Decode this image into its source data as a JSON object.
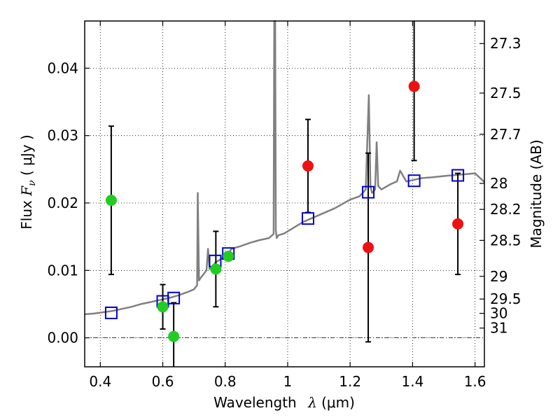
{
  "chart_data": {
    "type": "scatter",
    "xlabel_prefix": "Wavelength",
    "xlabel_symbol": "λ",
    "xlabel_unit": "(μm)",
    "ylabel_prefix": "Flux",
    "ylabel_symbol": "F",
    "ylabel_subscript": "ν",
    "ylabel_unit": "( μJy )",
    "y2label": "Magnitude (AB)",
    "xlim": [
      0.35,
      1.63
    ],
    "ylim": [
      -0.0043,
      0.047
    ],
    "grid": true,
    "x_ticks": [
      0.4,
      0.6,
      0.8,
      1.0,
      1.2,
      1.4,
      1.6
    ],
    "x_tick_labels": [
      "0.4",
      "0.6",
      "0.8",
      "1",
      "1.2",
      "1.4",
      "1.6"
    ],
    "y_ticks": [
      0.0,
      0.01,
      0.02,
      0.03,
      0.04
    ],
    "y_tick_labels": [
      "0.00",
      "0.01",
      "0.02",
      "0.03",
      "0.04"
    ],
    "y2_ticks": [
      27.3,
      27.5,
      27.7,
      28,
      28.2,
      28.5,
      29,
      29.5,
      30,
      31
    ],
    "y2_tick_labels": [
      "27.3",
      "27.5",
      "27.7",
      "28",
      "28.2",
      "28.5",
      "29",
      "29.5",
      "30",
      "31"
    ],
    "colors": {
      "spectrum": "#808080",
      "model_box": "#0000cc",
      "detection": "#22cc22",
      "nondetection": "#ee1111",
      "errorbar": "#000000"
    },
    "spectrum": {
      "name": "",
      "x": [
        0.35,
        0.38,
        0.41,
        0.44,
        0.47,
        0.5,
        0.53,
        0.56,
        0.59,
        0.62,
        0.65,
        0.68,
        0.7,
        0.71,
        0.712,
        0.716,
        0.72,
        0.74,
        0.745,
        0.75,
        0.77,
        0.79,
        0.8,
        0.81,
        0.82,
        0.85,
        0.88,
        0.91,
        0.94,
        0.955,
        0.957,
        0.96,
        0.962,
        0.965,
        0.97,
        0.99,
        1.0,
        1.05,
        1.1,
        1.15,
        1.2,
        1.23,
        1.25,
        1.26,
        1.265,
        1.27,
        1.28,
        1.285,
        1.29,
        1.3,
        1.33,
        1.35,
        1.36,
        1.38,
        1.4,
        1.43,
        1.46,
        1.5,
        1.55,
        1.6,
        1.63
      ],
      "y": [
        0.0035,
        0.0036,
        0.0038,
        0.004,
        0.0043,
        0.0046,
        0.005,
        0.0053,
        0.0056,
        0.0059,
        0.0063,
        0.0068,
        0.0072,
        0.0078,
        0.0215,
        0.0085,
        0.0088,
        0.01,
        0.0132,
        0.0102,
        0.0112,
        0.0118,
        0.0123,
        0.0125,
        0.0132,
        0.0136,
        0.0141,
        0.0145,
        0.0148,
        0.0154,
        0.047,
        0.047,
        0.016,
        0.0148,
        0.0152,
        0.0155,
        0.0158,
        0.0172,
        0.0182,
        0.0192,
        0.0205,
        0.021,
        0.022,
        0.036,
        0.0225,
        0.0215,
        0.022,
        0.029,
        0.0225,
        0.022,
        0.0228,
        0.0232,
        0.0248,
        0.0232,
        0.0234,
        0.0237,
        0.0238,
        0.024,
        0.0242,
        0.0244,
        0.0231
      ]
    },
    "model_boxes": {
      "x": [
        0.435,
        0.6,
        0.635,
        0.768,
        0.81,
        1.065,
        1.258,
        1.405,
        1.545
      ],
      "y": [
        0.0037,
        0.0054,
        0.0059,
        0.0114,
        0.0125,
        0.0177,
        0.0216,
        0.0233,
        0.0241
      ]
    },
    "detections": {
      "x": [
        0.435,
        0.6,
        0.635,
        0.77,
        0.81
      ],
      "y": [
        0.0204,
        0.0046,
        0.0002,
        0.0102,
        0.0121
      ],
      "yerr": [
        0.011,
        0.0033,
        0.005,
        0.0056,
        0.0
      ]
    },
    "nondetections": {
      "x": [
        1.065,
        1.258,
        1.405,
        1.545
      ],
      "y": [
        0.0255,
        0.0134,
        0.0373,
        0.0169
      ],
      "yerr": [
        0.0069,
        0.014,
        0.011,
        0.0075
      ]
    }
  }
}
